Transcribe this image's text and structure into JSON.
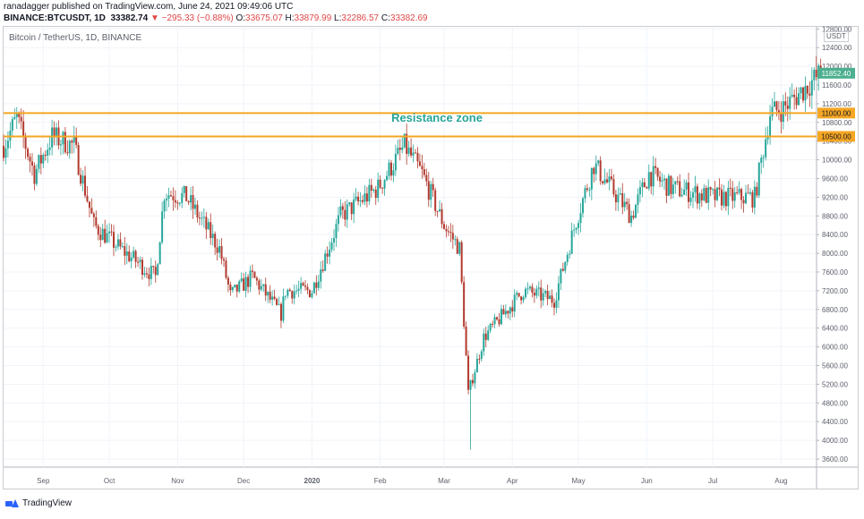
{
  "header": {
    "published_by": "ranadagger published on TradingView.com, June 24, 2021 09:49:06 UTC",
    "symbol": "BINANCE:BTCUSDT, 1D",
    "last": "33382.74",
    "change": "▼ −295.33 (−0.88%)",
    "o_label": "O:",
    "o_value": "33675.07",
    "h_label": "H:",
    "h_value": "33879.99",
    "l_label": "L:",
    "l_value": "32286.57",
    "c_label": "C:",
    "c_value": "33382.69"
  },
  "chart_title": "Bitcoin / TetherUS, 1D, BINANCE",
  "currency": "USDT",
  "footer_brand": "TradingView",
  "colors": {
    "up": "#26a69a",
    "down": "#b23a2e",
    "resistance": "#f5a623",
    "annotation": "#26a69a",
    "price_tag": "#4caf8f"
  },
  "chart_data": {
    "type": "candlestick",
    "title": "Bitcoin / TetherUS, 1D, BINANCE",
    "x_tick_labels": [
      "Sep",
      "Oct",
      "Nov",
      "Dec",
      "2020",
      "Feb",
      "Mar",
      "Apr",
      "May",
      "Jun",
      "Jul",
      "Aug"
    ],
    "y_tick_labels": [
      "3600.00",
      "4000.00",
      "4400.00",
      "4800.00",
      "5200.00",
      "5600.00",
      "6000.00",
      "6400.00",
      "6800.00",
      "7200.00",
      "7600.00",
      "8000.00",
      "8400.00",
      "8800.00",
      "9200.00",
      "9600.00",
      "10000.00",
      "10400.00",
      "10800.00",
      "11200.00",
      "11600.00",
      "12000.00",
      "12400.00",
      "12800.00"
    ],
    "ylim": [
      3300,
      12800
    ],
    "date_range": [
      "2019-08-14",
      "2020-08-19"
    ],
    "resistance_lines": [
      {
        "value": 11000,
        "label": "11000.00"
      },
      {
        "value": 10500,
        "label": "10500.00"
      }
    ],
    "annotations": [
      "Resistance zone"
    ],
    "current_price_label": "11852.40",
    "current_price": 11852.4,
    "price_path": [
      [
        "2019-08-14",
        10300
      ],
      [
        "2019-08-20",
        10900
      ],
      [
        "2019-08-28",
        9700
      ],
      [
        "2019-09-05",
        10500
      ],
      [
        "2019-09-15",
        10300
      ],
      [
        "2019-09-24",
        8600
      ],
      [
        "2019-10-06",
        8100
      ],
      [
        "2019-10-22",
        7500
      ],
      [
        "2019-10-26",
        9300
      ],
      [
        "2019-11-05",
        9200
      ],
      [
        "2019-11-20",
        8100
      ],
      [
        "2019-11-25",
        7100
      ],
      [
        "2019-12-05",
        7500
      ],
      [
        "2019-12-18",
        6700
      ],
      [
        "2019-12-20",
        7200
      ],
      [
        "2020-01-01",
        7200
      ],
      [
        "2020-01-14",
        8800
      ],
      [
        "2020-01-31",
        9400
      ],
      [
        "2020-02-12",
        10300
      ],
      [
        "2020-02-20",
        9700
      ],
      [
        "2020-03-01",
        8600
      ],
      [
        "2020-03-08",
        8100
      ],
      [
        "2020-03-12",
        5000
      ],
      [
        "2020-03-19",
        6200
      ],
      [
        "2020-04-06",
        7200
      ],
      [
        "2020-04-20",
        7000
      ],
      [
        "2020-04-30",
        8700
      ],
      [
        "2020-05-08",
        9900
      ],
      [
        "2020-05-25",
        8800
      ],
      [
        "2020-06-02",
        9700
      ],
      [
        "2020-06-12",
        9400
      ],
      [
        "2020-07-01",
        9200
      ],
      [
        "2020-07-20",
        9200
      ],
      [
        "2020-07-27",
        11000
      ],
      [
        "2020-08-02",
        11100
      ],
      [
        "2020-08-19",
        11852
      ]
    ]
  }
}
